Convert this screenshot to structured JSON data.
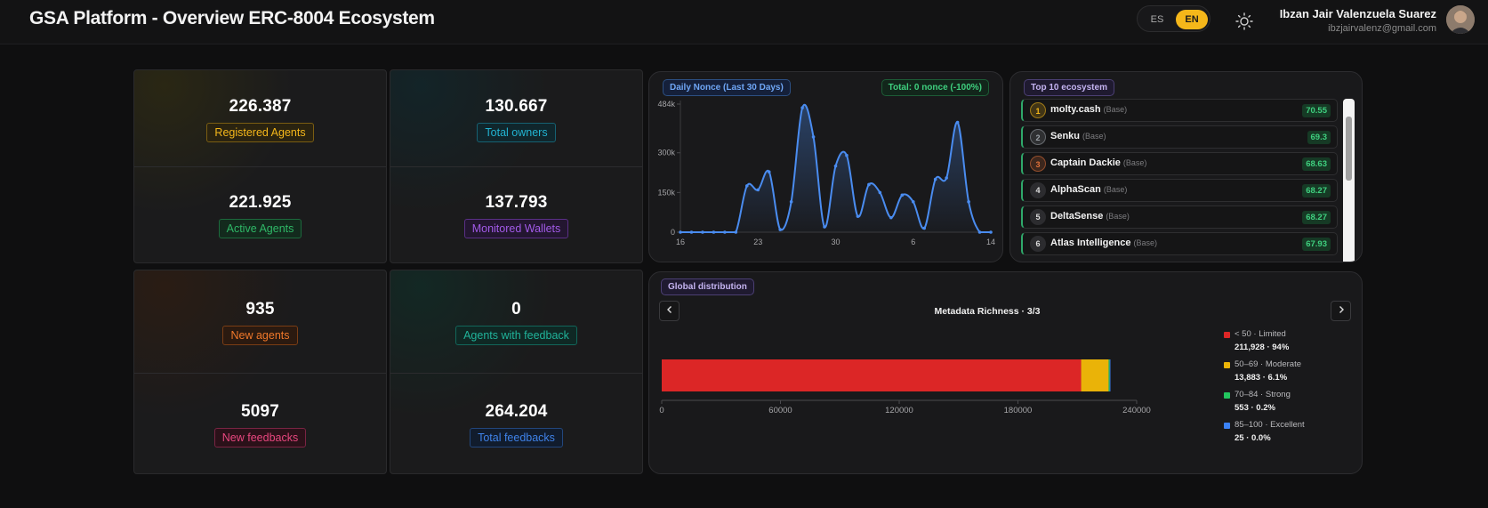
{
  "header": {
    "title": "GSA Platform - Overview ERC-8004 Ecosystem",
    "lang_es": "ES",
    "lang_en": "EN",
    "user_name": "Ibzan Jair Valenzuela Suarez",
    "user_email": "ibzjairvalenz@gmail.com"
  },
  "stats": {
    "registered_agents": {
      "value": "226.387",
      "label": "Registered Agents",
      "color": "#f5b71a"
    },
    "total_owners": {
      "value": "130.667",
      "label": "Total owners",
      "color": "#22b3d1"
    },
    "active_agents": {
      "value": "221.925",
      "label": "Active Agents",
      "color": "#2fb867"
    },
    "monitored_wallets": {
      "value": "137.793",
      "label": "Monitored Wallets",
      "color": "#a25ae8"
    },
    "new_agents": {
      "value": "935",
      "label": "New agents",
      "color": "#f0782a"
    },
    "agents_with_feedback": {
      "value": "0",
      "label": "Agents with feedback",
      "color": "#20b39a"
    },
    "new_feedbacks": {
      "value": "5097",
      "label": "New feedbacks",
      "color": "#e8477f"
    },
    "total_feedbacks": {
      "value": "264.204",
      "label": "Total feedbacks",
      "color": "#3f82e8"
    }
  },
  "daily_nonce": {
    "title": "Daily Nonce (Last 30 Days)",
    "total": "Total: 0 nonce (-100%)",
    "colors": {
      "line": "#4a8cf0"
    }
  },
  "top10": {
    "title": "Top 10 ecosystem",
    "items": [
      {
        "rank": "1",
        "name": "molty.cash",
        "network": "(Base)",
        "score": "70.55",
        "badge_color": "#f5b71a"
      },
      {
        "rank": "2",
        "name": "Senku",
        "network": "(Base)",
        "score": "69.3",
        "badge_color": "#9aa0a6"
      },
      {
        "rank": "3",
        "name": "Captain Dackie",
        "network": "(Base)",
        "score": "68.63",
        "badge_color": "#e0713a"
      },
      {
        "rank": "4",
        "name": "AlphaScan",
        "network": "(Base)",
        "score": "68.27",
        "badge_color": "#555"
      },
      {
        "rank": "5",
        "name": "DeltaSense",
        "network": "(Base)",
        "score": "68.27",
        "badge_color": "#555"
      },
      {
        "rank": "6",
        "name": "Atlas Intelligence",
        "network": "(Base)",
        "score": "67.93",
        "badge_color": "#555"
      }
    ]
  },
  "global_distribution": {
    "title": "Global distribution",
    "subtitle": "Metadata Richness · 3/3",
    "legend": [
      {
        "label": "< 50 · Limited",
        "value": "211,928 · 94%",
        "color": "#dc2626"
      },
      {
        "label": "50–69 · Moderate",
        "value": "13,883 · 6.1%",
        "color": "#eab308"
      },
      {
        "label": "70–84 · Strong",
        "value": "553 · 0.2%",
        "color": "#22c55e"
      },
      {
        "label": "85–100 · Excellent",
        "value": "25 · 0.0%",
        "color": "#3b82f6"
      }
    ]
  },
  "chart_data": [
    {
      "type": "line",
      "title": "Daily Nonce (Last 30 Days)",
      "x_ticks": [
        "16",
        "23",
        "30",
        "6",
        "14"
      ],
      "y_ticks": [
        "0",
        "150k",
        "300k",
        "484k"
      ],
      "ylim": [
        0,
        484000
      ],
      "x": [
        0,
        1,
        2,
        3,
        4,
        5,
        6,
        7,
        8,
        9,
        10,
        11,
        12,
        13,
        14,
        15,
        16,
        17,
        18,
        19,
        20,
        21,
        22,
        23,
        24,
        25,
        26,
        27,
        28
      ],
      "values": [
        0,
        0,
        0,
        0,
        0,
        0,
        175000,
        160000,
        228000,
        10000,
        115000,
        470000,
        360000,
        20000,
        250000,
        290000,
        60000,
        180000,
        150000,
        55000,
        140000,
        115000,
        15000,
        200000,
        205000,
        415000,
        115000,
        0,
        0
      ],
      "grid": false
    },
    {
      "type": "bar",
      "title": "Metadata Richness · 3/3",
      "orientation": "horizontal",
      "stacked": true,
      "categories": [
        "Metadata Richness"
      ],
      "series": [
        {
          "name": "< 50 · Limited",
          "values": [
            211928
          ]
        },
        {
          "name": "50–69 · Moderate",
          "values": [
            13883
          ]
        },
        {
          "name": "70–84 · Strong",
          "values": [
            553
          ]
        },
        {
          "name": "85–100 · Excellent",
          "values": [
            25
          ]
        }
      ],
      "x_ticks": [
        "0",
        "60000",
        "120000",
        "180000",
        "240000"
      ],
      "xlim": [
        0,
        240000
      ],
      "legend_position": "right"
    }
  ]
}
